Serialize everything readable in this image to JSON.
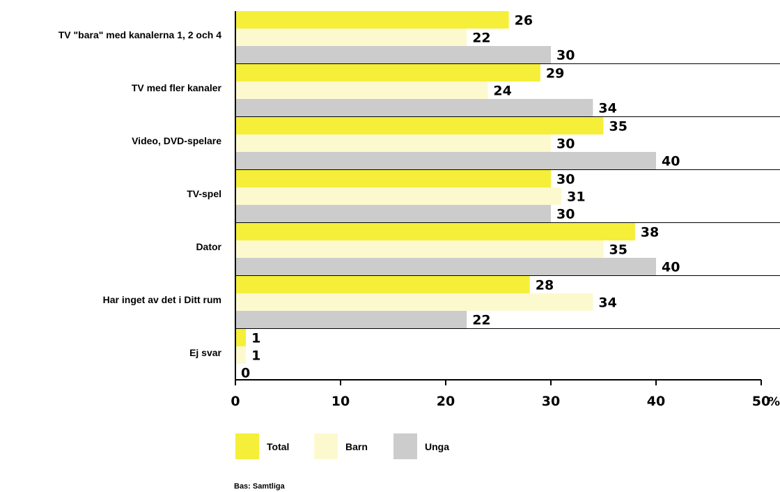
{
  "colors": {
    "Total": "#f5ef3a",
    "Barn": "#fdf9cf",
    "Unga": "#cccccc",
    "axis": "#000000"
  },
  "footnote": "Bas: Samtliga",
  "chart_data": {
    "type": "bar",
    "orientation": "horizontal",
    "categories": [
      "TV \"bara\" med kanalerna 1, 2 och 4",
      "TV med fler kanaler",
      "Video, DVD-spelare",
      "TV-spel",
      "Dator",
      "Har inget av det i Ditt rum",
      "Ej svar"
    ],
    "series": [
      {
        "name": "Total",
        "values": [
          26,
          29,
          35,
          30,
          38,
          28,
          1
        ]
      },
      {
        "name": "Barn",
        "values": [
          22,
          24,
          30,
          31,
          35,
          34,
          1
        ]
      },
      {
        "name": "Unga",
        "values": [
          30,
          34,
          40,
          30,
          40,
          22,
          0
        ]
      }
    ],
    "xlim": [
      0,
      50
    ],
    "xticks": [
      "0",
      "10",
      "20",
      "30",
      "40",
      "50"
    ],
    "x_unit": "%",
    "title": "",
    "xlabel": "",
    "ylabel": "",
    "legend_position": "bottom",
    "grid": false
  }
}
